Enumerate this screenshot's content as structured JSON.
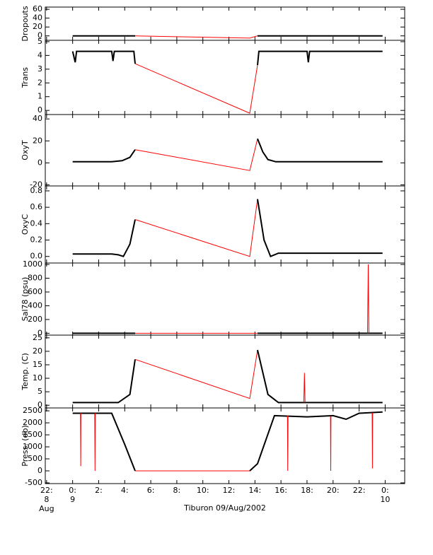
{
  "chart_data": [
    {
      "type": "line",
      "ylabel": "Dropouts",
      "xlim": [
        -2.1,
        25.5
      ],
      "ylim": [
        -10,
        65
      ],
      "yticks": [
        0,
        20,
        40,
        60
      ],
      "series": [
        {
          "color": "#000000",
          "x": [
            0,
            2,
            4,
            4.8
          ],
          "values": [
            0,
            0,
            0,
            0
          ]
        },
        {
          "color": "#ff0000",
          "x": [
            4.8,
            13.6,
            14.2
          ],
          "values": [
            0,
            -5,
            0
          ]
        },
        {
          "color": "#000000",
          "x": [
            14.2,
            18,
            22,
            23.8
          ],
          "values": [
            0,
            0,
            0,
            0
          ]
        }
      ]
    },
    {
      "type": "line",
      "ylabel": "Trans",
      "xlim": [
        -2.1,
        25.5
      ],
      "ylim": [
        -0.3,
        5.1
      ],
      "yticks": [
        0,
        1,
        2,
        3,
        4,
        5
      ],
      "series": [
        {
          "color": "#000000",
          "x": [
            0,
            0.2,
            0.3,
            1,
            3,
            3.1,
            3.2,
            4.7,
            4.8
          ],
          "values": [
            4.3,
            3.5,
            4.3,
            4.3,
            4.3,
            3.6,
            4.3,
            4.3,
            3.4
          ]
        },
        {
          "color": "#ff0000",
          "x": [
            4.8,
            13.6,
            14.2
          ],
          "values": [
            3.4,
            -0.2,
            3.3
          ]
        },
        {
          "color": "#000000",
          "x": [
            14.2,
            14.3,
            18,
            18.1,
            18.2,
            23.8
          ],
          "values": [
            3.3,
            4.3,
            4.3,
            3.5,
            4.3,
            4.3
          ]
        }
      ]
    },
    {
      "type": "line",
      "ylabel": "OxyT",
      "xlim": [
        -2.1,
        25.5
      ],
      "ylim": [
        -21,
        44
      ],
      "yticks": [
        -20,
        0,
        20,
        40
      ],
      "series": [
        {
          "color": "#000000",
          "x": [
            0,
            3,
            3.8,
            4.4,
            4.8
          ],
          "values": [
            1,
            1,
            2,
            5,
            12
          ]
        },
        {
          "color": "#ff0000",
          "x": [
            4.8,
            13.6,
            14.2
          ],
          "values": [
            12,
            -7,
            22
          ]
        },
        {
          "color": "#000000",
          "x": [
            14.2,
            14.6,
            15,
            15.6,
            23.8
          ],
          "values": [
            22,
            10,
            3,
            1,
            1
          ]
        }
      ]
    },
    {
      "type": "line",
      "ylabel": "OxyC",
      "xlim": [
        -2.1,
        25.5
      ],
      "ylim": [
        -0.08,
        0.86
      ],
      "yticks": [
        {
          "value": 0,
          "label": "0.0"
        },
        0.2,
        0.4,
        0.6,
        0.8
      ],
      "series": [
        {
          "color": "#000000",
          "x": [
            0,
            3,
            3.5,
            3.9,
            4.4,
            4.8
          ],
          "values": [
            0.03,
            0.03,
            0.02,
            0,
            0.15,
            0.45
          ]
        },
        {
          "color": "#ff0000",
          "x": [
            4.8,
            13.6,
            14.2
          ],
          "values": [
            0.45,
            0,
            0.7
          ]
        },
        {
          "color": "#000000",
          "x": [
            14.2,
            14.7,
            15.2,
            15.8,
            23.8
          ],
          "values": [
            0.7,
            0.2,
            0,
            0.04,
            0.04
          ]
        }
      ]
    },
    {
      "type": "line",
      "ylabel": "Sal78 (psu)",
      "xlim": [
        -2.1,
        25.5
      ],
      "ylim": [
        -27,
        1021
      ],
      "yticks": [
        0,
        200,
        400,
        600,
        800,
        1000
      ],
      "series": [
        {
          "color": "#000000",
          "x": [
            0,
            4.8
          ],
          "values": [
            0,
            0
          ]
        },
        {
          "color": "#ff0000",
          "x": [
            4.8,
            13.6,
            14.2
          ],
          "values": [
            0,
            0,
            0
          ]
        },
        {
          "color": "#000000",
          "x": [
            14.2,
            23.8
          ],
          "values": [
            0,
            0
          ]
        },
        {
          "color": "#ff0000",
          "x": [
            22.65,
            22.7,
            22.75
          ],
          "values": [
            0,
            1000,
            0
          ]
        }
      ]
    },
    {
      "type": "line",
      "ylabel": "Temp. (C)",
      "xlim": [
        -2.1,
        25.5
      ],
      "ylim": [
        -1,
        26
      ],
      "yticks": [
        0,
        5,
        10,
        15,
        20,
        25
      ],
      "series": [
        {
          "color": "#000000",
          "x": [
            0,
            3.5,
            4.4,
            4.8
          ],
          "values": [
            1,
            1,
            4,
            17
          ]
        },
        {
          "color": "#ff0000",
          "x": [
            4.8,
            13.6,
            14.2
          ],
          "values": [
            17,
            2.5,
            20.5
          ]
        },
        {
          "color": "#000000",
          "x": [
            14.2,
            15,
            15.8,
            23.8
          ],
          "values": [
            20.5,
            4,
            1,
            1
          ]
        },
        {
          "color": "#ff0000",
          "x": [
            17.75,
            17.8,
            17.85
          ],
          "values": [
            1,
            12,
            1
          ]
        }
      ]
    },
    {
      "type": "line",
      "ylabel": "Press. (db)",
      "xlim": [
        -2.1,
        25.5
      ],
      "ylim": [
        -530,
        2620
      ],
      "yticks": [
        -500,
        0,
        500,
        1000,
        1500,
        2000,
        2500
      ],
      "xlabel": "Tiburon 09/Aug/2002",
      "xticks": [
        {
          "value": -2,
          "label": "22:"
        },
        {
          "value": 0,
          "label": "0:"
        },
        {
          "value": 2,
          "label": "2:"
        },
        {
          "value": 4,
          "label": "4:"
        },
        {
          "value": 6,
          "label": "6:"
        },
        {
          "value": 8,
          "label": "8:"
        },
        {
          "value": 10,
          "label": "10:"
        },
        {
          "value": 12,
          "label": "12:"
        },
        {
          "value": 14,
          "label": "14:"
        },
        {
          "value": 16,
          "label": "16:"
        },
        {
          "value": 18,
          "label": "18:"
        },
        {
          "value": 20,
          "label": "20:"
        },
        {
          "value": 22,
          "label": "22:"
        },
        {
          "value": 24,
          "label": "0:"
        }
      ],
      "xdates": [
        {
          "value": -2,
          "lines": [
            "8",
            "Aug"
          ]
        },
        {
          "value": 0,
          "lines": [
            "9"
          ]
        },
        {
          "value": 24,
          "lines": [
            "10"
          ]
        }
      ],
      "series": [
        {
          "color": "#000000",
          "x": [
            0,
            3,
            4,
            4.8
          ],
          "values": [
            2400,
            2400,
            1100,
            0
          ]
        },
        {
          "color": "#ff0000",
          "x": [
            4.8,
            13.6
          ],
          "values": [
            0,
            0
          ]
        },
        {
          "color": "#000000",
          "x": [
            13.6,
            14.2,
            15.5,
            18,
            20,
            21,
            22,
            23.8
          ],
          "values": [
            0,
            300,
            2300,
            2250,
            2300,
            2150,
            2400,
            2450
          ]
        },
        {
          "color": "#ff0000",
          "x": [
            0.6,
            0.62,
            0.64
          ],
          "values": [
            2400,
            200,
            2400
          ]
        },
        {
          "color": "#ff0000",
          "x": [
            1.7,
            1.72,
            1.74
          ],
          "values": [
            2400,
            0,
            2400
          ]
        },
        {
          "color": "#ff0000",
          "x": [
            16.5,
            16.52,
            16.54
          ],
          "values": [
            2300,
            0,
            2300
          ]
        },
        {
          "color": "#ff0000",
          "x": [
            19.8,
            19.82,
            19.84
          ],
          "values": [
            2280,
            0,
            2280
          ]
        },
        {
          "color": "#ff0000",
          "x": [
            23,
            23.02,
            23.04
          ],
          "values": [
            2420,
            100,
            2420
          ]
        }
      ]
    }
  ]
}
